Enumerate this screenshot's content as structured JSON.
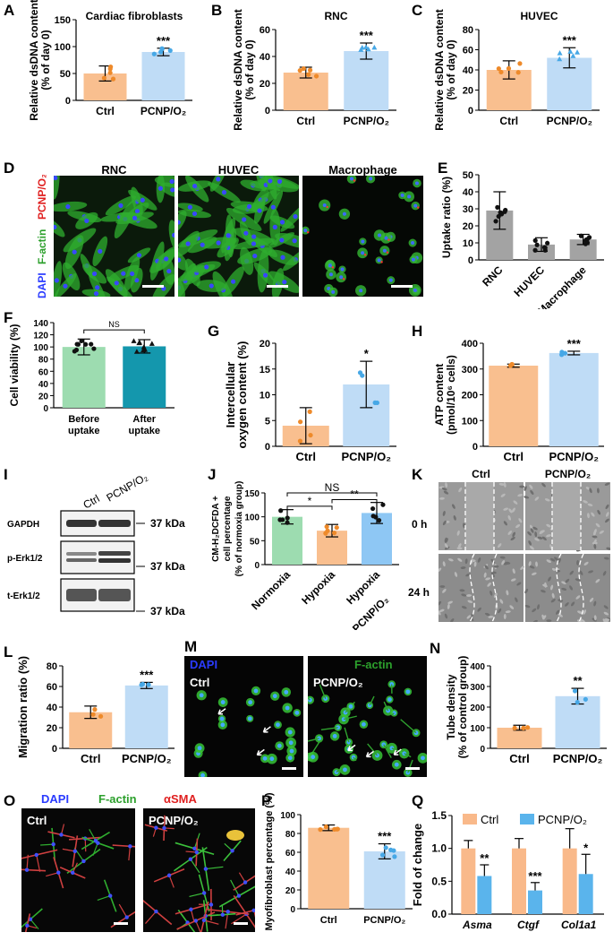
{
  "colors": {
    "orange": "#f9bf8f",
    "orange_dark": "#ee8a2a",
    "blue": "#bfdcf6",
    "blue_dark": "#47a8e6",
    "gray": "#a3a3a3",
    "green": "#9ddcb0",
    "teal": "#1497ad",
    "ctrl_legend": "#f9b98a",
    "pcnp_legend": "#5ab4ec"
  },
  "panels": {
    "A": {
      "letter": "A",
      "title": "Cardiac fibroblasts",
      "ylabel1": "Relative dsDNA content",
      "ylabel2": "(% of day 0)",
      "yticks": [
        "0",
        "50",
        "100",
        "150"
      ],
      "sig": "***"
    },
    "B": {
      "letter": "B",
      "title": "RNC",
      "ylabel1": "Relative dsDNA content",
      "ylabel2": "(% of day 0)",
      "yticks": [
        "0",
        "20",
        "40",
        "60"
      ],
      "sig": "***"
    },
    "C": {
      "letter": "C",
      "title": "HUVEC",
      "ylabel1": "Relative dsDNA content",
      "ylabel2": "(% of day 0)",
      "yticks": [
        "0",
        "20",
        "40",
        "60",
        "80"
      ],
      "sig": "***"
    },
    "D": {
      "letter": "D",
      "col1": "RNC",
      "col2": "HUVEC",
      "col3": "Macrophage",
      "side_dapi": "DAPI",
      "side_factin": "F-actin",
      "side_pcnp": "PCNP/O₂"
    },
    "E": {
      "letter": "E",
      "ylabel": "Uptake ratio (%)",
      "yticks": [
        "0",
        "10",
        "20",
        "30",
        "40",
        "50"
      ],
      "cats": [
        "RNC",
        "HUVEC",
        "Macrophage"
      ]
    },
    "F": {
      "letter": "F",
      "ylabel": "Cell viability (%)",
      "yticks": [
        "0",
        "20",
        "40",
        "60",
        "80",
        "100",
        "120",
        "140"
      ],
      "sig": "NS",
      "cat1a": "Before",
      "cat1b": "uptake",
      "cat2a": "After",
      "cat2b": "uptake"
    },
    "G": {
      "letter": "G",
      "ylabel1": "Intercellular",
      "ylabel2": "oxygen content (%)",
      "yticks": [
        "0",
        "5",
        "10",
        "15",
        "20"
      ],
      "sig": "*"
    },
    "H": {
      "letter": "H",
      "ylabel1": "ATP content",
      "ylabel2": "(pmol/10⁶ cells)",
      "yticks": [
        "0",
        "100",
        "200",
        "300",
        "400"
      ],
      "sig": "***"
    },
    "I": {
      "letter": "I",
      "rows": [
        "GAPDH",
        "p-Erk1/2",
        "t-Erk1/2"
      ],
      "kda": "37 kDa"
    },
    "J": {
      "letter": "J",
      "ylabel1": "CM-H₂DCFDA +",
      "ylabel2": "cell percentage",
      "ylabel3": "(% of normoxia group)",
      "yticks": [
        "0",
        "50",
        "100",
        "150"
      ],
      "cats": [
        "Normoxia",
        "Hypoxia",
        "Hypoxia",
        "+PCNP/O₂"
      ],
      "sig1": "*",
      "sig2": "**",
      "sig3": "NS"
    },
    "K": {
      "letter": "K",
      "row1": "0 h",
      "row2": "24 h"
    },
    "L": {
      "letter": "L",
      "ylabel": "Migration ratio (%)",
      "yticks": [
        "0",
        "20",
        "40",
        "60",
        "80"
      ],
      "sig": "***"
    },
    "M": {
      "letter": "M",
      "dapi": "DAPI",
      "factin": "F-actin"
    },
    "N": {
      "letter": "N",
      "ylabel1": "Tube density",
      "ylabel2": "(% of control group)",
      "yticks": [
        "0",
        "100",
        "200",
        "300",
        "400"
      ],
      "sig": "**"
    },
    "O": {
      "letter": "O",
      "dapi": "DAPI",
      "factin": "F-actin",
      "asma": "αSMA"
    },
    "P": {
      "letter": "P",
      "ylabel": "Myofibroblast percentage (%)",
      "yticks": [
        "0",
        "20",
        "40",
        "60",
        "80",
        "100"
      ],
      "sig": "***"
    },
    "Q": {
      "letter": "Q",
      "ylabel": "Fold of change",
      "yticks": [
        "0.0",
        "0.5",
        "1.0",
        "1.5"
      ],
      "genes": [
        "Asma",
        "Ctgf",
        "Col1a1"
      ],
      "sigs": [
        "**",
        "***",
        "*"
      ]
    }
  },
  "labels": {
    "ctrl": "Ctrl",
    "pcnp": "PCNP/O₂"
  },
  "chart_data": [
    {
      "panel": "A",
      "type": "bar",
      "categories": [
        "Ctrl",
        "PCNP/O₂"
      ],
      "values": [
        50,
        90
      ],
      "errors": [
        14,
        7
      ],
      "ylim": [
        0,
        150
      ],
      "title": "Cardiac fibroblasts"
    },
    {
      "panel": "B",
      "type": "bar",
      "categories": [
        "Ctrl",
        "PCNP/O₂"
      ],
      "values": [
        28,
        44
      ],
      "errors": [
        4,
        6
      ],
      "ylim": [
        0,
        60
      ],
      "title": "RNC"
    },
    {
      "panel": "C",
      "type": "bar",
      "categories": [
        "Ctrl",
        "PCNP/O₂"
      ],
      "values": [
        40,
        52
      ],
      "errors": [
        9,
        10
      ],
      "ylim": [
        0,
        80
      ],
      "title": "HUVEC"
    },
    {
      "panel": "E",
      "type": "bar",
      "categories": [
        "RNC",
        "HUVEC",
        "Macrophage"
      ],
      "values": [
        29,
        9,
        12
      ],
      "errors": [
        11,
        4,
        3
      ],
      "ylim": [
        0,
        50
      ]
    },
    {
      "panel": "F",
      "type": "bar",
      "categories": [
        "Before uptake",
        "After uptake"
      ],
      "values": [
        100,
        101
      ],
      "errors": [
        13,
        11
      ],
      "ylim": [
        0,
        140
      ]
    },
    {
      "panel": "G",
      "type": "bar",
      "categories": [
        "Ctrl",
        "PCNP/O₂"
      ],
      "values": [
        4,
        12
      ],
      "errors": [
        3.5,
        4.5
      ],
      "ylim": [
        0,
        20
      ]
    },
    {
      "panel": "H",
      "type": "bar",
      "categories": [
        "Ctrl",
        "PCNP/O₂"
      ],
      "values": [
        313,
        362
      ],
      "errors": [
        6,
        7
      ],
      "ylim": [
        0,
        400
      ]
    },
    {
      "panel": "J",
      "type": "bar",
      "categories": [
        "Normoxia",
        "Hypoxia",
        "Hypoxia +PCNP/O₂"
      ],
      "values": [
        100,
        71,
        108
      ],
      "errors": [
        15,
        13,
        22
      ],
      "ylim": [
        0,
        150
      ]
    },
    {
      "panel": "L",
      "type": "bar",
      "categories": [
        "Ctrl",
        "PCNP/O₂"
      ],
      "values": [
        35,
        61
      ],
      "errors": [
        6,
        3
      ],
      "ylim": [
        0,
        80
      ]
    },
    {
      "panel": "N",
      "type": "bar",
      "categories": [
        "Ctrl",
        "PCNP/O₂"
      ],
      "values": [
        100,
        253
      ],
      "errors": [
        12,
        38
      ],
      "ylim": [
        0,
        400
      ]
    },
    {
      "panel": "P",
      "type": "bar",
      "categories": [
        "Ctrl",
        "PCNP/O₂"
      ],
      "values": [
        86,
        61
      ],
      "errors": [
        3,
        8
      ],
      "ylim": [
        0,
        100
      ]
    },
    {
      "panel": "Q",
      "type": "bar",
      "categories": [
        "Asma",
        "Ctgf",
        "Col1a1"
      ],
      "series": [
        {
          "name": "Ctrl",
          "values": [
            1.0,
            1.0,
            1.0
          ],
          "errors": [
            0.12,
            0.15,
            0.3
          ]
        },
        {
          "name": "PCNP/O₂",
          "values": [
            0.58,
            0.36,
            0.61
          ],
          "errors": [
            0.17,
            0.12,
            0.3
          ]
        }
      ],
      "ylim": [
        0,
        1.5
      ]
    }
  ]
}
